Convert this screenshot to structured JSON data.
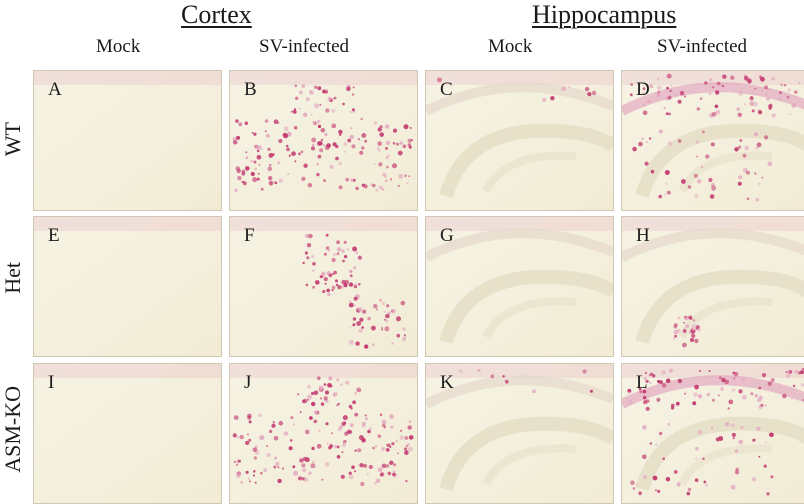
{
  "sections": [
    {
      "id": "cortex",
      "title": "Cortex"
    },
    {
      "id": "hippocampus",
      "title": "Hippocampus"
    }
  ],
  "column_labels": [
    "Mock",
    "SV-infected",
    "Mock",
    "SV-infected"
  ],
  "row_labels": [
    "WT",
    "Het",
    "ASM-KO"
  ],
  "panels": [
    {
      "letter": "A",
      "tissue": "cortex",
      "staining": "none"
    },
    {
      "letter": "B",
      "tissue": "cortex",
      "staining": "band"
    },
    {
      "letter": "C",
      "tissue": "hippocampus",
      "staining": "faint"
    },
    {
      "letter": "D",
      "tissue": "hippocampus",
      "staining": "strong"
    },
    {
      "letter": "E",
      "tissue": "cortex",
      "staining": "none"
    },
    {
      "letter": "F",
      "tissue": "cortex",
      "staining": "patch"
    },
    {
      "letter": "G",
      "tissue": "hippocampus",
      "staining": "none"
    },
    {
      "letter": "H",
      "tissue": "hippocampus",
      "staining": "focal"
    },
    {
      "letter": "I",
      "tissue": "cortex",
      "staining": "none"
    },
    {
      "letter": "J",
      "tissue": "cortex",
      "staining": "band"
    },
    {
      "letter": "K",
      "tissue": "hippocampus",
      "staining": "faint"
    },
    {
      "letter": "L",
      "tissue": "hippocampus",
      "staining": "strong"
    }
  ],
  "colors": {
    "tissue": "#f2ecd6",
    "tissue_light": "#f6f3e4",
    "stain": "#c2366e",
    "stain_light": "#e3a9c0"
  }
}
